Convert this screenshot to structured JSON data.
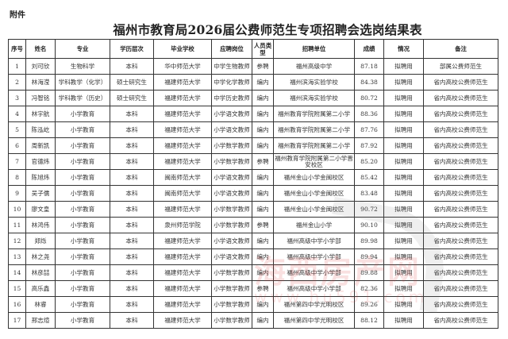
{
  "attachment_label": "附件",
  "title": "福州市教育局2026届公费师范生专项招聘会选岗结果表",
  "columns": [
    "序号",
    "姓名",
    "专业",
    "学历层次",
    "毕业学校",
    "应聘岗位",
    "人员类型",
    "招聘单位",
    "成绩",
    "情况",
    "备注"
  ],
  "rows": [
    [
      "1",
      "刘可欣",
      "生物科学",
      "本科",
      "华中师范大学",
      "中学生物教师",
      "参聘",
      "福州高级中学",
      "87.18",
      "拟聘用",
      "部属公费师范生"
    ],
    [
      "2",
      "林海滢",
      "学科教学（化学）",
      "硕士研究生",
      "福建师范大学",
      "中学化学教师",
      "编内",
      "福州滨海实验学校",
      "84.38",
      "拟聘用",
      "省内高校公费师范生"
    ],
    [
      "3",
      "冯智铭",
      "学科教学（历史）",
      "硕士研究生",
      "福建师范大学",
      "中学历史教师",
      "编内",
      "福州滨海实验学校",
      "80.72",
      "拟聘用",
      "省内高校公费师范生"
    ],
    [
      "4",
      "林宇航",
      "小学教育",
      "本科",
      "福建师范大学",
      "小学语文教师",
      "编内",
      "福州教育学院附属第二小学",
      "88.36",
      "拟聘用",
      "省内高校公费师范生"
    ],
    [
      "5",
      "陈泓屹",
      "小学教育",
      "本科",
      "福建师范大学",
      "小学语文教师",
      "编内",
      "福州教育学院附属第二小学",
      "87.76",
      "拟聘用",
      "省内高校公费师范生"
    ],
    [
      "6",
      "周新凯",
      "小学教育",
      "本科",
      "福建师范大学",
      "小学数学教师",
      "编内",
      "福州教育学院附属第二小学",
      "87.92",
      "拟聘用",
      "省内高校公费师范生"
    ],
    [
      "7",
      "官德炜",
      "小学教育",
      "本科",
      "福建师范大学",
      "小学数学教师",
      "参聘",
      "福州教育学院附属第二小学晋安校区",
      "85.20",
      "拟聘用",
      "省内高校公费师范生"
    ],
    [
      "8",
      "陈旭炜",
      "小学教育",
      "本科",
      "闽南师范大学",
      "小学语文教师",
      "编内",
      "福州金山小学金闽校区",
      "85.42",
      "拟聘用",
      "省内高校公费师范生"
    ],
    [
      "9",
      "吴子儒",
      "小学教育",
      "本科",
      "闽南师范大学",
      "小学语文教师",
      "编内",
      "福州金山小学金闽校区",
      "83.48",
      "拟聘用",
      "省内高校公费师范生"
    ],
    [
      "10",
      "廖文皇",
      "小学教育",
      "本科",
      "福建师范大学",
      "小学数学教师",
      "编内",
      "福州金山小学金闽校区",
      "90.72",
      "拟聘用",
      "省内高校公费师范生"
    ],
    [
      "11",
      "林鸿伟",
      "小学教育",
      "本科",
      "泉州师范学院",
      "小学数学教师",
      "参聘",
      "福州金山小学",
      "90.10",
      "拟聘用",
      "省内高校公费师范生"
    ],
    [
      "12",
      "郑烁",
      "小学教育",
      "本科",
      "福建师范大学",
      "小学语文教师",
      "编内",
      "福州高级中学小学部",
      "89.98",
      "拟聘用",
      "省内高校公费师范生"
    ],
    [
      "13",
      "林之尧",
      "小学教育",
      "本科",
      "福建师范大学",
      "小学语文教师",
      "编内",
      "福州高级中学小学部",
      "89.94",
      "拟聘用",
      "省内高校公费师范生"
    ],
    [
      "14",
      "林彦喆",
      "小学教育",
      "本科",
      "福建师范大学",
      "小学数学教师",
      "编内",
      "福州高级中学小学部",
      "89.88",
      "拟聘用",
      "省内高校公费师范生"
    ],
    [
      "15",
      "高乐鑫",
      "小学教育",
      "本科",
      "福建师范大学",
      "小学数学教师",
      "参聘",
      "福州高级中学小学部",
      "82.36",
      "拟聘用",
      "省内高校公费师范生"
    ],
    [
      "16",
      "林睿",
      "小学教育",
      "本科",
      "福建师范大学",
      "小学数学教师",
      "编内",
      "福州第四中学光明校区",
      "89.26",
      "拟聘用",
      "省内高校公费师范生"
    ],
    [
      "17",
      "邢志煊",
      "小学教育",
      "本科",
      "福建师范大学",
      "小学数学教师",
      "编内",
      "福州第四中学光明校区",
      "88.12",
      "拟聘用",
      "省内高校公费师范生"
    ]
  ],
  "watermark": {
    "name": "海西房产网",
    "url": "www.hu591.com",
    "color": "#dc3c3c"
  }
}
